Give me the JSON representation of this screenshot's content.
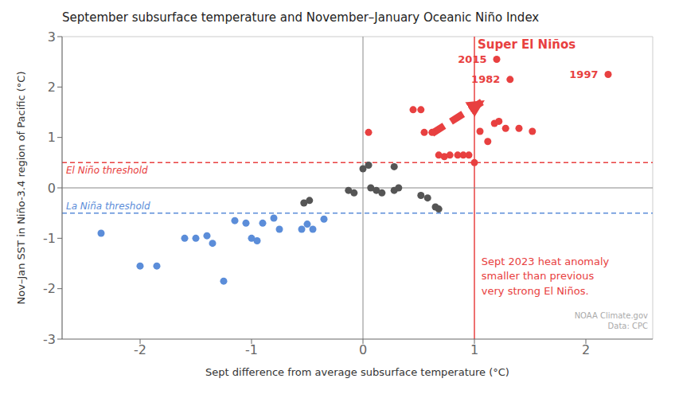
{
  "chart_data": {
    "type": "scatter",
    "title": "September subsurface temperature and November–January Oceanic Niño Index",
    "x_label": "Sept difference from average subsurface temperature (°C)",
    "y_label": "Nov–Jan SST in Niño-3.4 region of Pacific (°C)",
    "xlim": [
      -2.7,
      2.6
    ],
    "ylim": [
      -3,
      3
    ],
    "xticks": [
      -2,
      -1,
      0,
      1,
      2
    ],
    "yticks": [
      -3,
      -2,
      -1,
      0,
      1,
      2,
      3
    ],
    "grid": false,
    "series": [
      {
        "color": "#5b8dd9",
        "points": [
          [
            -2.35,
            -0.9
          ],
          [
            -2.0,
            -1.55
          ],
          [
            -1.85,
            -1.55
          ],
          [
            -1.6,
            -1.0
          ],
          [
            -1.5,
            -1.0
          ],
          [
            -1.4,
            -0.95
          ],
          [
            -1.35,
            -1.1
          ],
          [
            -1.25,
            -1.85
          ],
          [
            -1.15,
            -0.65
          ],
          [
            -1.05,
            -0.7
          ],
          [
            -1.0,
            -1.0
          ],
          [
            -0.95,
            -1.05
          ],
          [
            -0.9,
            -0.7
          ],
          [
            -0.8,
            -0.6
          ],
          [
            -0.75,
            -0.82
          ],
          [
            -0.55,
            -0.82
          ],
          [
            -0.5,
            -0.72
          ],
          [
            -0.45,
            -0.82
          ],
          [
            -0.35,
            -0.62
          ]
        ]
      },
      {
        "color": "#555555",
        "points": [
          [
            0.0,
            0.38
          ],
          [
            0.05,
            0.45
          ],
          [
            0.07,
            0.0
          ],
          [
            0.12,
            -0.05
          ],
          [
            0.17,
            -0.1
          ],
          [
            0.28,
            -0.05
          ],
          [
            0.32,
            0.0
          ],
          [
            0.28,
            0.42
          ],
          [
            0.52,
            -0.15
          ],
          [
            0.58,
            -0.2
          ],
          [
            -0.08,
            -0.1
          ],
          [
            -0.13,
            -0.05
          ],
          [
            -0.48,
            -0.25
          ],
          [
            -0.53,
            -0.3
          ],
          [
            0.65,
            -0.38
          ],
          [
            0.68,
            -0.42
          ]
        ]
      },
      {
        "color": "#E84040",
        "points": [
          [
            0.05,
            1.1
          ],
          [
            0.45,
            1.55
          ],
          [
            0.52,
            1.55
          ],
          [
            0.55,
            1.1
          ],
          [
            0.62,
            1.1
          ],
          [
            0.68,
            0.65
          ],
          [
            0.73,
            0.62
          ],
          [
            0.78,
            0.65
          ],
          [
            0.85,
            0.65
          ],
          [
            0.9,
            0.65
          ],
          [
            0.95,
            0.65
          ],
          [
            1.0,
            0.5
          ],
          [
            1.05,
            1.12
          ],
          [
            1.12,
            0.92
          ],
          [
            1.18,
            1.28
          ],
          [
            1.22,
            1.32
          ],
          [
            1.28,
            1.18
          ],
          [
            1.4,
            1.18
          ],
          [
            1.52,
            1.12
          ]
        ]
      },
      {
        "color": "#E84040",
        "points": [
          [
            1.2,
            2.55
          ],
          [
            1.32,
            2.15
          ],
          [
            2.2,
            2.25
          ]
        ],
        "labels": [
          "2015",
          "1982",
          "1997"
        ]
      }
    ],
    "reference_lines": [
      {
        "axis": "y",
        "value": 0.5,
        "color": "#E84040",
        "line_style": "dashed",
        "label": "El Niño threshold"
      },
      {
        "axis": "y",
        "value": -0.5,
        "color": "#5b8dd9",
        "line_style": "dashed",
        "label": "La Niña threshold"
      },
      {
        "axis": "x",
        "value": 1.0,
        "color": "#E84040",
        "line_style": "solid",
        "label": "Super El Niños"
      },
      {
        "axis": "y",
        "value": 0,
        "color": "#888888",
        "line_style": "solid"
      },
      {
        "axis": "x",
        "value": 0,
        "color": "#888888",
        "line_style": "solid"
      }
    ],
    "arrows": [
      {
        "from": [
          0.62,
          1.08
        ],
        "to": [
          1.08,
          1.72
        ],
        "color": "#E84040",
        "line_style": "dashed"
      }
    ],
    "annotations": [
      {
        "text": "Sept 2023 heat anomaly\nsmaller than previous\nvery strong El Niños.",
        "color": "#E84040"
      },
      {
        "text": "NOAA Climate.gov\nData: CPC",
        "color": "#aaaaaa"
      }
    ]
  }
}
